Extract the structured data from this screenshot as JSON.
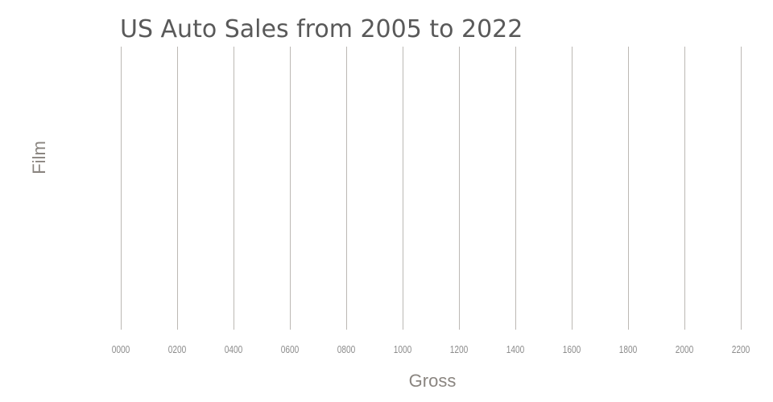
{
  "title": "US Auto Sales from 2005 to 2022",
  "x_axis": {
    "label": "Gross",
    "ticks": [
      "0000",
      "0200",
      "0400",
      "0600",
      "0800",
      "1000",
      "1200",
      "1400",
      "1600",
      "1800",
      "2000",
      "2200"
    ]
  },
  "y_axis": {
    "label": "Film"
  },
  "colors": {
    "background": "#ffffff",
    "title": "#595959",
    "axis_label": "#8a8580",
    "tick_label": "#8c8c8c",
    "gridline": "#bcb8b4"
  },
  "chart_data": {
    "type": "bar",
    "orientation": "horizontal",
    "title": "US Auto Sales from 2005 to 2022",
    "xlabel": "Gross",
    "ylabel": "Film",
    "x_tick_labels": [
      "0000",
      "0200",
      "0400",
      "0600",
      "0800",
      "1000",
      "1200",
      "1400",
      "1600",
      "1800",
      "2000",
      "2200"
    ],
    "xlim": [
      0,
      2200
    ],
    "x_tick_step": 200,
    "categories": [],
    "series": [],
    "grid": "vertical",
    "legend": "none"
  }
}
